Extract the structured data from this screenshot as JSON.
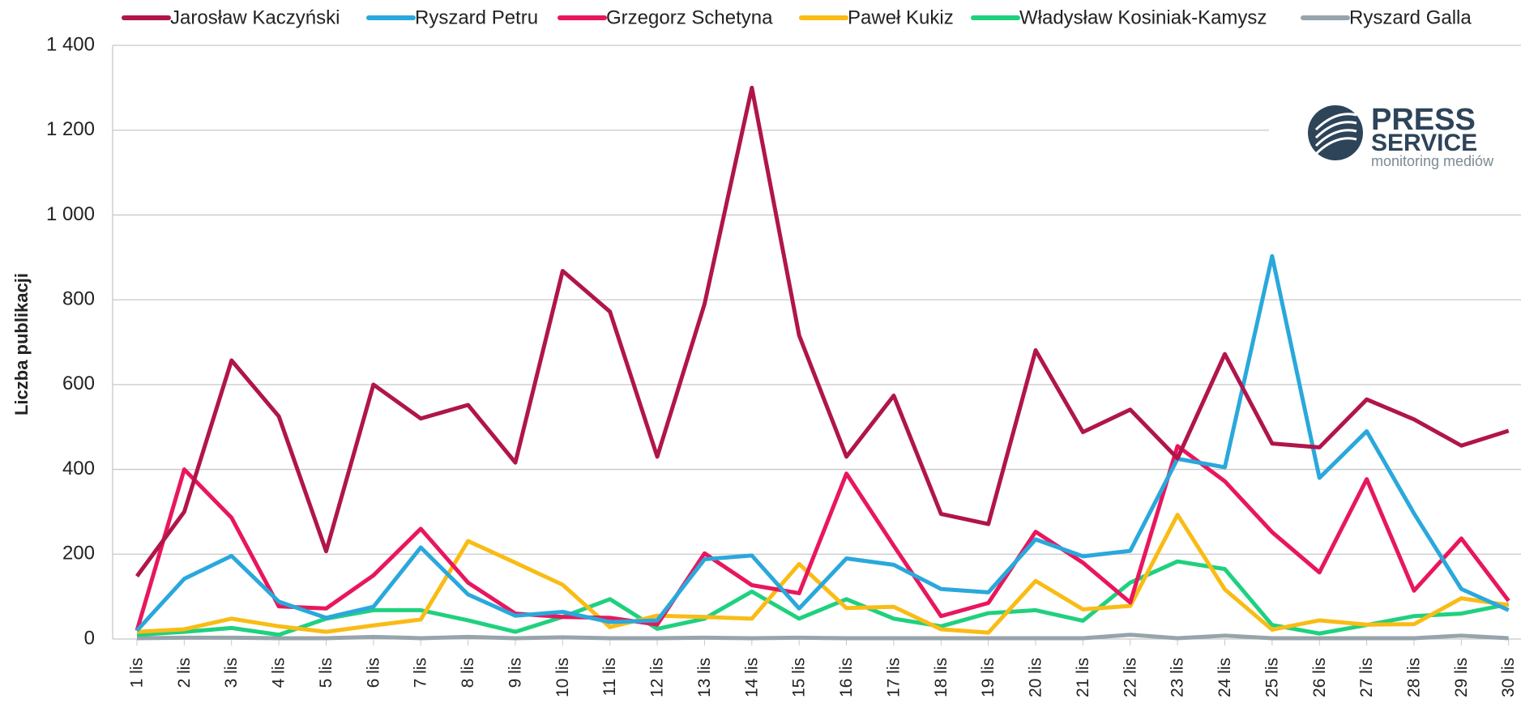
{
  "chart_data": {
    "type": "line",
    "y_axis_label": "Liczba publikacji",
    "categories": [
      "1 lis",
      "2 lis",
      "3 lis",
      "4 lis",
      "5 lis",
      "6 lis",
      "7 lis",
      "8 lis",
      "9 lis",
      "10 lis",
      "11 lis",
      "12 lis",
      "13 lis",
      "14 lis",
      "15 lis",
      "16 lis",
      "17 lis",
      "18 lis",
      "19 lis",
      "20 lis",
      "21 lis",
      "22 lis",
      "23 lis",
      "24 lis",
      "25 lis",
      "26 lis",
      "27 lis",
      "28 lis",
      "29 lis",
      "30 lis"
    ],
    "series": [
      {
        "name": "Jarosław Kaczyński",
        "color": "#b0154b",
        "values": [
          148,
          300,
          657,
          525,
          207,
          600,
          520,
          552,
          416,
          868,
          772,
          430,
          790,
          1300,
          716,
          430,
          574,
          295,
          271,
          681,
          488,
          541,
          426,
          672,
          461,
          452,
          565,
          518,
          456,
          491
        ]
      },
      {
        "name": "Ryszard Petru",
        "color": "#2aa8dc",
        "values": [
          20,
          142,
          196,
          88,
          50,
          76,
          216,
          105,
          55,
          64,
          40,
          44,
          188,
          197,
          72,
          190,
          175,
          118,
          110,
          235,
          195,
          208,
          425,
          405,
          903,
          380,
          490,
          296,
          118,
          68
        ]
      },
      {
        "name": "Grzegorz Schetyna",
        "color": "#e8175d",
        "values": [
          20,
          400,
          286,
          77,
          72,
          150,
          260,
          133,
          60,
          52,
          50,
          34,
          202,
          127,
          108,
          390,
          220,
          54,
          85,
          253,
          180,
          86,
          455,
          372,
          252,
          157,
          377,
          114,
          237,
          90
        ]
      },
      {
        "name": "Paweł Kukiz",
        "color": "#f9bc15",
        "values": [
          17,
          23,
          48,
          30,
          17,
          32,
          46,
          231,
          180,
          128,
          28,
          55,
          52,
          48,
          177,
          73,
          76,
          23,
          15,
          137,
          70,
          78,
          293,
          117,
          22,
          44,
          34,
          35,
          96,
          80
        ]
      },
      {
        "name": "Władysław Kosiniak-Kamysz",
        "color": "#1fd17e",
        "values": [
          10,
          17,
          26,
          10,
          48,
          68,
          68,
          44,
          17,
          52,
          94,
          24,
          48,
          112,
          48,
          94,
          48,
          30,
          61,
          68,
          43,
          133,
          183,
          165,
          33,
          13,
          33,
          54,
          60,
          82
        ]
      },
      {
        "name": "Ryszard Galla",
        "color": "#97a4ab",
        "values": [
          2,
          3,
          3,
          2,
          2,
          5,
          2,
          5,
          2,
          4,
          2,
          2,
          3,
          2,
          3,
          2,
          2,
          2,
          2,
          2,
          2,
          10,
          2,
          8,
          2,
          2,
          2,
          2,
          8,
          2
        ]
      }
    ],
    "ylim": [
      0,
      1400
    ],
    "yticks": [
      0,
      200,
      400,
      600,
      800,
      {
        "value": 1000,
        "label": "1 000"
      },
      {
        "value": 1200,
        "label": "1 200"
      },
      {
        "value": 1400,
        "label": "1 400"
      }
    ],
    "grid": true,
    "legend": "top",
    "logo": {
      "line1": "PRESS",
      "line2": "SERVICE",
      "line3": "monitoring mediów"
    }
  }
}
